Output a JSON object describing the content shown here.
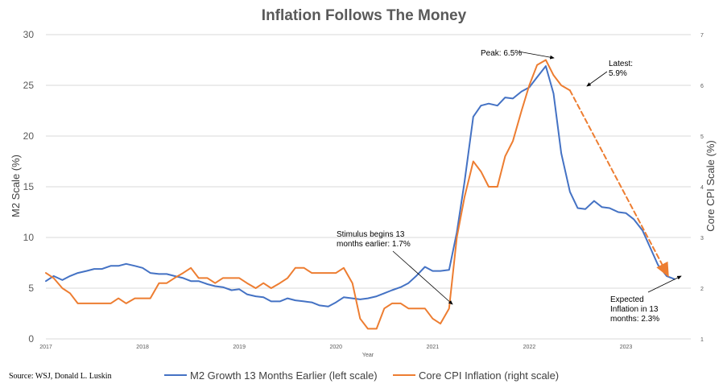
{
  "chart_data": {
    "type": "line",
    "title": "Inflation Follows The Money",
    "xlabel": "Year",
    "ylabel_left": "M2 Scale (%)",
    "ylabel_right": "Core CPI Scale (%)",
    "ylim_left": [
      0,
      30
    ],
    "ylim_right": [
      1,
      7
    ],
    "xlim": [
      2017.0,
      2023.67
    ],
    "x_ticks": [
      "2017",
      "2018",
      "2019",
      "2020",
      "2021",
      "2022",
      "2023"
    ],
    "y_ticks_left": [
      "0",
      "5",
      "10",
      "15",
      "20",
      "25",
      "30"
    ],
    "y_ticks_right": [
      "1",
      "2",
      "3",
      "4",
      "5",
      "6",
      "7"
    ],
    "grid": "horizontal",
    "series": [
      {
        "name": "M2 Growth 13 Months Earlier (left scale)",
        "axis": "left",
        "color": "#4472c4",
        "x": [
          2017.0,
          2017.08,
          2017.17,
          2017.25,
          2017.33,
          2017.42,
          2017.5,
          2017.58,
          2017.67,
          2017.75,
          2017.83,
          2017.92,
          2018.0,
          2018.08,
          2018.17,
          2018.25,
          2018.33,
          2018.42,
          2018.5,
          2018.58,
          2018.67,
          2018.75,
          2018.83,
          2018.92,
          2019.0,
          2019.08,
          2019.17,
          2019.25,
          2019.33,
          2019.42,
          2019.5,
          2019.58,
          2019.67,
          2019.75,
          2019.83,
          2019.92,
          2020.0,
          2020.08,
          2020.17,
          2020.25,
          2020.33,
          2020.42,
          2020.5,
          2020.58,
          2020.67,
          2020.75,
          2020.83,
          2020.92,
          2021.0,
          2021.08,
          2021.17,
          2021.25,
          2021.33,
          2021.42,
          2021.5,
          2021.58,
          2021.67,
          2021.75,
          2021.83,
          2021.92,
          2022.0,
          2022.08,
          2022.17,
          2022.25,
          2022.33,
          2022.42,
          2022.5,
          2022.58,
          2022.67,
          2022.75,
          2022.83,
          2022.92,
          2023.0,
          2023.08,
          2023.17,
          2023.25,
          2023.33,
          2023.42,
          2023.5
        ],
        "values": [
          5.7,
          6.2,
          5.8,
          6.2,
          6.5,
          6.7,
          6.9,
          6.9,
          7.2,
          7.2,
          7.4,
          7.2,
          7.0,
          6.5,
          6.4,
          6.4,
          6.2,
          6.0,
          5.7,
          5.7,
          5.4,
          5.2,
          5.1,
          4.8,
          4.9,
          4.4,
          4.2,
          4.1,
          3.7,
          3.7,
          4.0,
          3.8,
          3.7,
          3.6,
          3.3,
          3.2,
          3.6,
          4.1,
          4.0,
          3.9,
          4.0,
          4.2,
          4.5,
          4.8,
          5.1,
          5.5,
          6.2,
          7.1,
          6.7,
          6.7,
          6.8,
          10.5,
          15.5,
          21.9,
          23.0,
          23.2,
          23.0,
          23.8,
          23.7,
          24.4,
          24.8,
          25.8,
          26.9,
          24.2,
          18.3,
          14.5,
          12.9,
          12.8,
          13.6,
          13.0,
          12.9,
          12.5,
          12.4,
          11.8,
          10.7,
          9.0,
          7.3,
          6.2,
          5.9
        ]
      },
      {
        "name": "Core CPI Inflation (right scale)",
        "axis": "right",
        "color": "#ed7d31",
        "x": [
          2017.0,
          2017.08,
          2017.17,
          2017.25,
          2017.33,
          2017.42,
          2017.5,
          2017.58,
          2017.67,
          2017.75,
          2017.83,
          2017.92,
          2018.0,
          2018.08,
          2018.17,
          2018.25,
          2018.33,
          2018.42,
          2018.5,
          2018.58,
          2018.67,
          2018.75,
          2018.83,
          2018.92,
          2019.0,
          2019.08,
          2019.17,
          2019.25,
          2019.33,
          2019.42,
          2019.5,
          2019.58,
          2019.67,
          2019.75,
          2019.83,
          2019.92,
          2020.0,
          2020.08,
          2020.17,
          2020.25,
          2020.33,
          2020.42,
          2020.5,
          2020.58,
          2020.67,
          2020.75,
          2020.83,
          2020.92,
          2021.0,
          2021.08,
          2021.17,
          2021.25,
          2021.33,
          2021.42,
          2021.5,
          2021.58,
          2021.67,
          2021.75,
          2021.83,
          2021.92,
          2022.0,
          2022.08,
          2022.17,
          2022.25,
          2022.33,
          2022.42
        ],
        "values": [
          2.3,
          2.2,
          2.0,
          1.9,
          1.7,
          1.7,
          1.7,
          1.7,
          1.7,
          1.8,
          1.7,
          1.8,
          1.8,
          1.8,
          2.1,
          2.1,
          2.2,
          2.3,
          2.4,
          2.2,
          2.2,
          2.1,
          2.2,
          2.2,
          2.2,
          2.1,
          2.0,
          2.1,
          2.0,
          2.1,
          2.2,
          2.4,
          2.4,
          2.3,
          2.3,
          2.3,
          2.3,
          2.4,
          2.1,
          1.4,
          1.2,
          1.2,
          1.6,
          1.7,
          1.7,
          1.6,
          1.6,
          1.6,
          1.4,
          1.3,
          1.6,
          3.0,
          3.8,
          4.5,
          4.3,
          4.0,
          4.0,
          4.6,
          4.9,
          5.5,
          6.0,
          6.4,
          6.5,
          6.2,
          6.0,
          5.9
        ]
      },
      {
        "name": "",
        "axis": "right",
        "style": "dashed",
        "color": "#ed7d31",
        "x": [
          2022.42,
          2023.42
        ],
        "values": [
          5.9,
          2.3
        ]
      }
    ],
    "annotations": {
      "stimulus": [
        "Stimulus begins 13",
        "months earlier: 1.7%"
      ],
      "peak": [
        "Peak: 6.5%"
      ],
      "latest": [
        "Latest:",
        "5.9%"
      ],
      "expected": [
        "Expected",
        "Inflation in 13",
        "months: 2.3%"
      ]
    },
    "source": "Source: WSJ, Donald L. Luskin"
  }
}
